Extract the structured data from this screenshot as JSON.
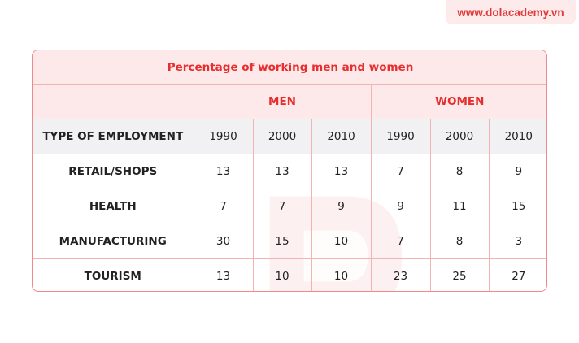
{
  "brand": {
    "text": "www.dolacademy.vn"
  },
  "colors": {
    "accent": "#e62e2e",
    "header_bg": "#fde9ea",
    "subheader_bg": "#f1f1f3",
    "border": "#f3b3b3"
  },
  "chart_data": {
    "type": "table",
    "title": "Percentage of working men and women",
    "groups": [
      "MEN",
      "WOMEN"
    ],
    "years": [
      "1990",
      "2000",
      "2010"
    ],
    "row_header": "TYPE OF EMPLOYMENT",
    "rows": [
      {
        "label": "RETAIL/SHOPS",
        "men": [
          13,
          13,
          13
        ],
        "women": [
          7,
          8,
          9
        ]
      },
      {
        "label": "HEALTH",
        "men": [
          7,
          7,
          9
        ],
        "women": [
          9,
          11,
          15
        ]
      },
      {
        "label": "MANUFACTURING",
        "men": [
          30,
          15,
          10
        ],
        "women": [
          7,
          8,
          3
        ]
      },
      {
        "label": "TOURISM",
        "men": [
          13,
          10,
          10
        ],
        "women": [
          23,
          25,
          27
        ]
      }
    ]
  }
}
